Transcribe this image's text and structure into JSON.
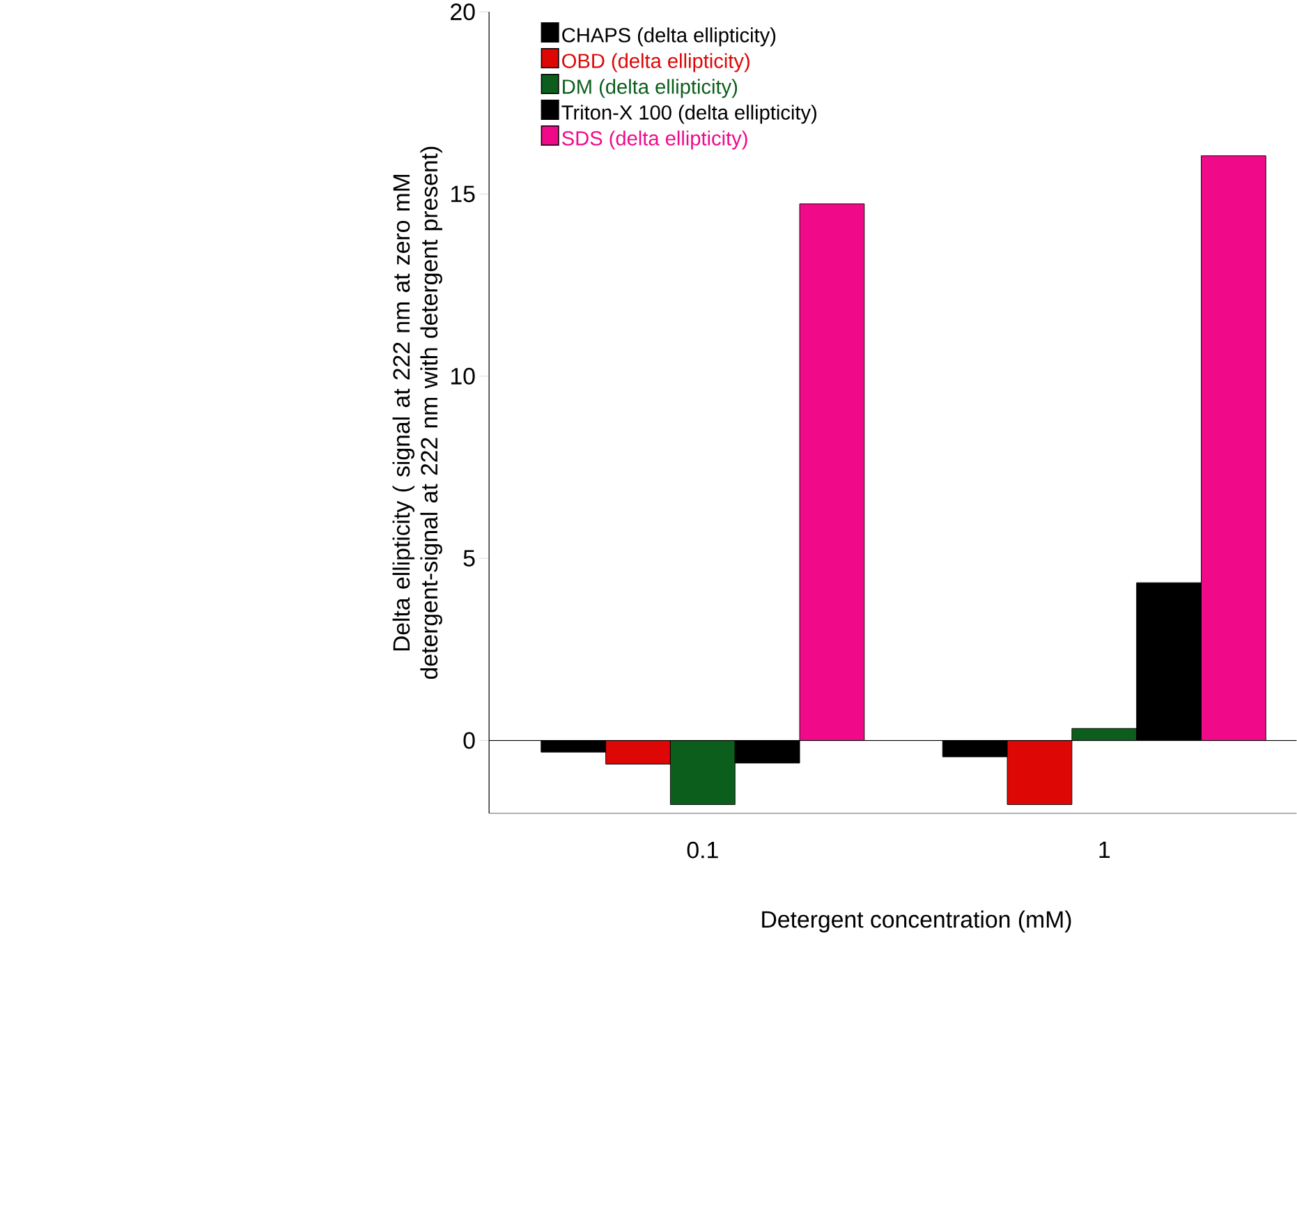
{
  "chart_data": {
    "type": "bar",
    "xlabel": "Detergent concentration (mM)",
    "ylabel": "Delta ellipticity ( signal at 222 nm at zero mM detergent-signal at 222 nm with detergent present)",
    "categories": [
      "0.1",
      "1"
    ],
    "series": [
      {
        "name": "CHAPS (delta ellipticity)",
        "color": "#000000",
        "values": [
          -0.32,
          -0.45
        ]
      },
      {
        "name": "OBD (delta ellipticity)",
        "color": "#dd0706",
        "values": [
          -0.65,
          -1.76
        ]
      },
      {
        "name": "DM (delta ellipticity)",
        "color": "#0b5e1c",
        "values": [
          -1.76,
          0.33
        ]
      },
      {
        "name": "Triton-X 100 (delta ellipticity)",
        "color": "#000000",
        "values": [
          -0.62,
          4.33
        ]
      },
      {
        "name": "SDS (delta ellipticity)",
        "color": "#f00a8a",
        "values": [
          14.73,
          16.05
        ]
      }
    ],
    "ylim": [
      -2,
      20
    ],
    "yticks": [
      0,
      5,
      10,
      15,
      20
    ],
    "ref_lines": [
      {
        "axis": "y",
        "value": 0,
        "color": "#000000"
      }
    ],
    "legend": "top left",
    "grid": false
  }
}
